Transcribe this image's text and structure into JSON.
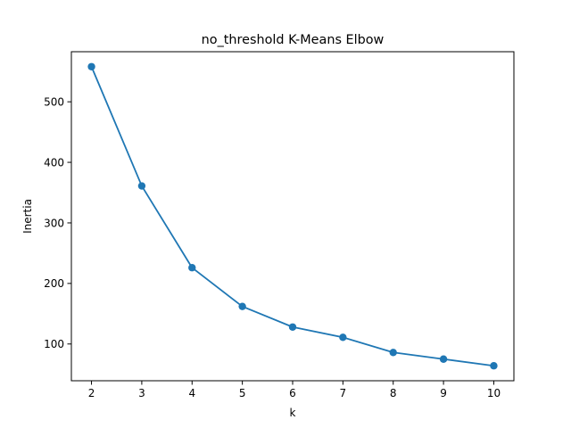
{
  "chart_data": {
    "type": "line",
    "title": "no_threshold K-Means Elbow",
    "xlabel": "k",
    "ylabel": "Inertia",
    "x": [
      2,
      3,
      4,
      5,
      6,
      7,
      8,
      9,
      10
    ],
    "series": [
      {
        "values": [
          558,
          361,
          226,
          162,
          128,
          111,
          86,
          75,
          64
        ],
        "color": "#1f77b4",
        "marker": "circle"
      }
    ],
    "xlim": [
      1.6,
      10.4
    ],
    "ylim": [
      39.3,
      582.7
    ],
    "xticks": [
      2,
      3,
      4,
      5,
      6,
      7,
      8,
      9,
      10
    ],
    "yticks": [
      100,
      200,
      300,
      400,
      500
    ],
    "grid": false,
    "legend": "none"
  }
}
